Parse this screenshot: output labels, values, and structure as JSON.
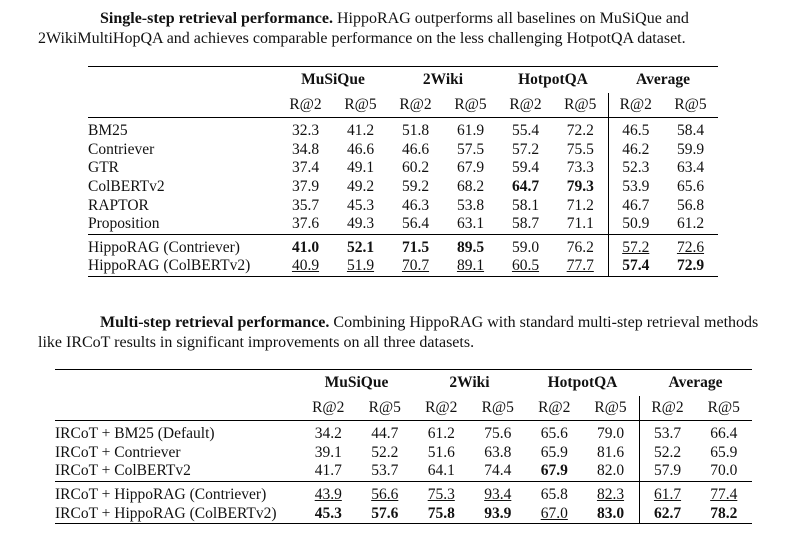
{
  "tables": [
    {
      "caption": {
        "lead": "Single-step retrieval performance.",
        "text": "HippoRAG outperforms all baselines on MuSiQue and 2WikiMultiHopQA and achieves comparable performance on the less challenging HotpotQA dataset."
      },
      "datasets": [
        "MuSiQue",
        "2Wiki",
        "HotpotQA",
        "Average"
      ],
      "subheaders": [
        "R@2",
        "R@5",
        "R@2",
        "R@5",
        "R@2",
        "R@5",
        "R@2",
        "R@5"
      ],
      "groups": [
        [
          {
            "method": "BM25",
            "values": [
              "32.3",
              "41.2",
              "51.8",
              "61.9",
              "55.4",
              "72.2",
              "46.5",
              "58.4"
            ],
            "bold": [],
            "underline": []
          },
          {
            "method": "Contriever",
            "values": [
              "34.8",
              "46.6",
              "46.6",
              "57.5",
              "57.2",
              "75.5",
              "46.2",
              "59.9"
            ],
            "bold": [],
            "underline": []
          },
          {
            "method": "GTR",
            "values": [
              "37.4",
              "49.1",
              "60.2",
              "67.9",
              "59.4",
              "73.3",
              "52.3",
              "63.4"
            ],
            "bold": [],
            "underline": []
          },
          {
            "method": "ColBERTv2",
            "values": [
              "37.9",
              "49.2",
              "59.2",
              "68.2",
              "64.7",
              "79.3",
              "53.9",
              "65.6"
            ],
            "bold": [
              4,
              5
            ],
            "underline": []
          },
          {
            "method": "RAPTOR",
            "values": [
              "35.7",
              "45.3",
              "46.3",
              "53.8",
              "58.1",
              "71.2",
              "46.7",
              "56.8"
            ],
            "bold": [],
            "underline": []
          },
          {
            "method": "Proposition",
            "values": [
              "37.6",
              "49.3",
              "56.4",
              "63.1",
              "58.7",
              "71.1",
              "50.9",
              "61.2"
            ],
            "bold": [],
            "underline": []
          }
        ],
        [
          {
            "method": "HippoRAG (Contriever)",
            "values": [
              "41.0",
              "52.1",
              "71.5",
              "89.5",
              "59.0",
              "76.2",
              "57.2",
              "72.6"
            ],
            "bold": [
              0,
              1,
              2,
              3
            ],
            "underline": [
              6,
              7
            ]
          },
          {
            "method": "HippoRAG (ColBERTv2)",
            "values": [
              "40.9",
              "51.9",
              "70.7",
              "89.1",
              "60.5",
              "77.7",
              "57.4",
              "72.9"
            ],
            "bold": [
              6,
              7
            ],
            "underline": [
              0,
              1,
              2,
              3,
              4,
              5
            ]
          }
        ]
      ]
    },
    {
      "caption": {
        "lead": "Multi-step retrieval performance.",
        "text": "Combining HippoRAG with standard multi-step retrieval methods like IRCoT results in significant improvements on all three datasets."
      },
      "datasets": [
        "MuSiQue",
        "2Wiki",
        "HotpotQA",
        "Average"
      ],
      "subheaders": [
        "R@2",
        "R@5",
        "R@2",
        "R@5",
        "R@2",
        "R@5",
        "R@2",
        "R@5"
      ],
      "groups": [
        [
          {
            "method": "IRCoT + BM25 (Default)",
            "values": [
              "34.2",
              "44.7",
              "61.2",
              "75.6",
              "65.6",
              "79.0",
              "53.7",
              "66.4"
            ],
            "bold": [],
            "underline": []
          },
          {
            "method": "IRCoT + Contriever",
            "values": [
              "39.1",
              "52.2",
              "51.6",
              "63.8",
              "65.9",
              "81.6",
              "52.2",
              "65.9"
            ],
            "bold": [],
            "underline": []
          },
          {
            "method": "IRCoT + ColBERTv2",
            "values": [
              "41.7",
              "53.7",
              "64.1",
              "74.4",
              "67.9",
              "82.0",
              "57.9",
              "70.0"
            ],
            "bold": [
              4
            ],
            "underline": []
          }
        ],
        [
          {
            "method": "IRCoT + HippoRAG (Contriever)",
            "values": [
              "43.9",
              "56.6",
              "75.3",
              "93.4",
              "65.8",
              "82.3",
              "61.7",
              "77.4"
            ],
            "bold": [],
            "underline": [
              0,
              1,
              2,
              3,
              5,
              6,
              7
            ]
          },
          {
            "method": "IRCoT + HippoRAG (ColBERTv2)",
            "values": [
              "45.3",
              "57.6",
              "75.8",
              "93.9",
              "67.0",
              "83.0",
              "62.7",
              "78.2"
            ],
            "bold": [
              0,
              1,
              2,
              3,
              5,
              6,
              7
            ],
            "underline": [
              4
            ]
          }
        ]
      ]
    }
  ]
}
